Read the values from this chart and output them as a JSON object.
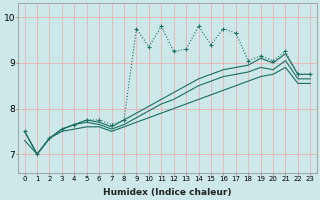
{
  "xlabel": "Humidex (Indice chaleur)",
  "xlim": [
    -0.5,
    23.5
  ],
  "ylim": [
    6.6,
    10.3
  ],
  "yticks": [
    7,
    8,
    9,
    10
  ],
  "xticks": [
    0,
    1,
    2,
    3,
    4,
    5,
    6,
    7,
    8,
    9,
    10,
    11,
    12,
    13,
    14,
    15,
    16,
    17,
    18,
    19,
    20,
    21,
    22,
    23
  ],
  "bg_color": "#cce8e8",
  "grid_color": "#e8b8b8",
  "line_color": "#1a6e62",
  "line_dotted": [
    7.5,
    7.0,
    7.35,
    7.55,
    7.65,
    7.75,
    7.75,
    7.65,
    7.75,
    9.75,
    9.35,
    9.8,
    9.25,
    9.3,
    9.8,
    9.4,
    9.75,
    9.65,
    9.05,
    9.15,
    9.05,
    9.25,
    8.75,
    8.75
  ],
  "line_a": [
    7.5,
    7.0,
    7.35,
    7.55,
    7.65,
    7.75,
    7.7,
    7.6,
    7.75,
    7.9,
    8.05,
    8.2,
    8.35,
    8.5,
    8.65,
    8.75,
    8.85,
    8.9,
    8.95,
    9.1,
    9.0,
    9.2,
    8.75,
    8.75
  ],
  "line_b": [
    7.5,
    7.0,
    7.35,
    7.55,
    7.65,
    7.7,
    7.65,
    7.55,
    7.65,
    7.8,
    7.95,
    8.1,
    8.2,
    8.35,
    8.5,
    8.6,
    8.7,
    8.75,
    8.8,
    8.9,
    8.85,
    9.05,
    8.65,
    8.65
  ],
  "line_c": [
    7.3,
    7.0,
    7.35,
    7.5,
    7.55,
    7.6,
    7.6,
    7.5,
    7.6,
    7.7,
    7.8,
    7.9,
    8.0,
    8.1,
    8.2,
    8.3,
    8.4,
    8.5,
    8.6,
    8.7,
    8.75,
    8.9,
    8.55,
    8.55
  ]
}
